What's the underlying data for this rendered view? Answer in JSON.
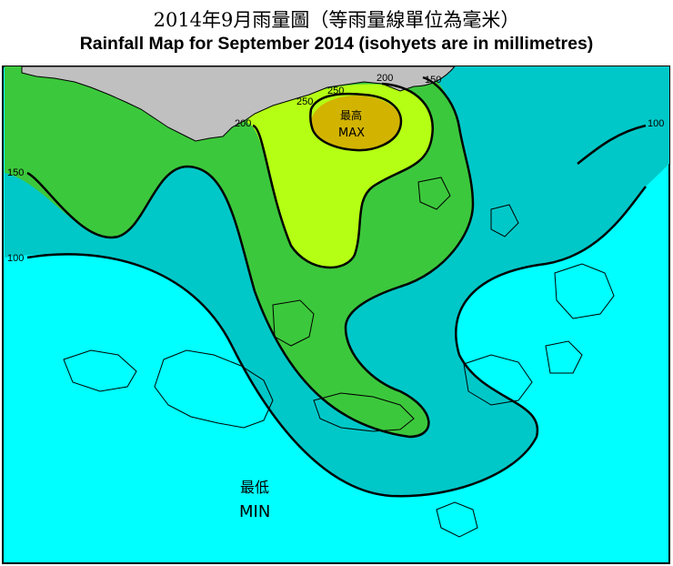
{
  "title_zh": "2014年9月雨量圖（等雨量線單位為毫米）",
  "title_en": "Rainfall Map for September 2014 (isohyets are in millimetres)",
  "isohyet_labels": {
    "l100_left": "100",
    "l100_right": "100",
    "l150_left": "150",
    "l150_top": "150",
    "l200_left": "200",
    "l200_top": "200",
    "l250_a": "250",
    "l250_b": "250"
  },
  "extremes": {
    "max_zh": "最高",
    "max_en": "MAX",
    "min_zh": "最低",
    "min_en": "MIN"
  },
  "colors": {
    "sea": "#00ffff",
    "land_outside": "#c0c0c0",
    "band_100_150": "#00c8c8",
    "band_150_200": "#3cc83c",
    "band_200_250": "#b4ff14",
    "band_above_250": "#d2b400"
  }
}
